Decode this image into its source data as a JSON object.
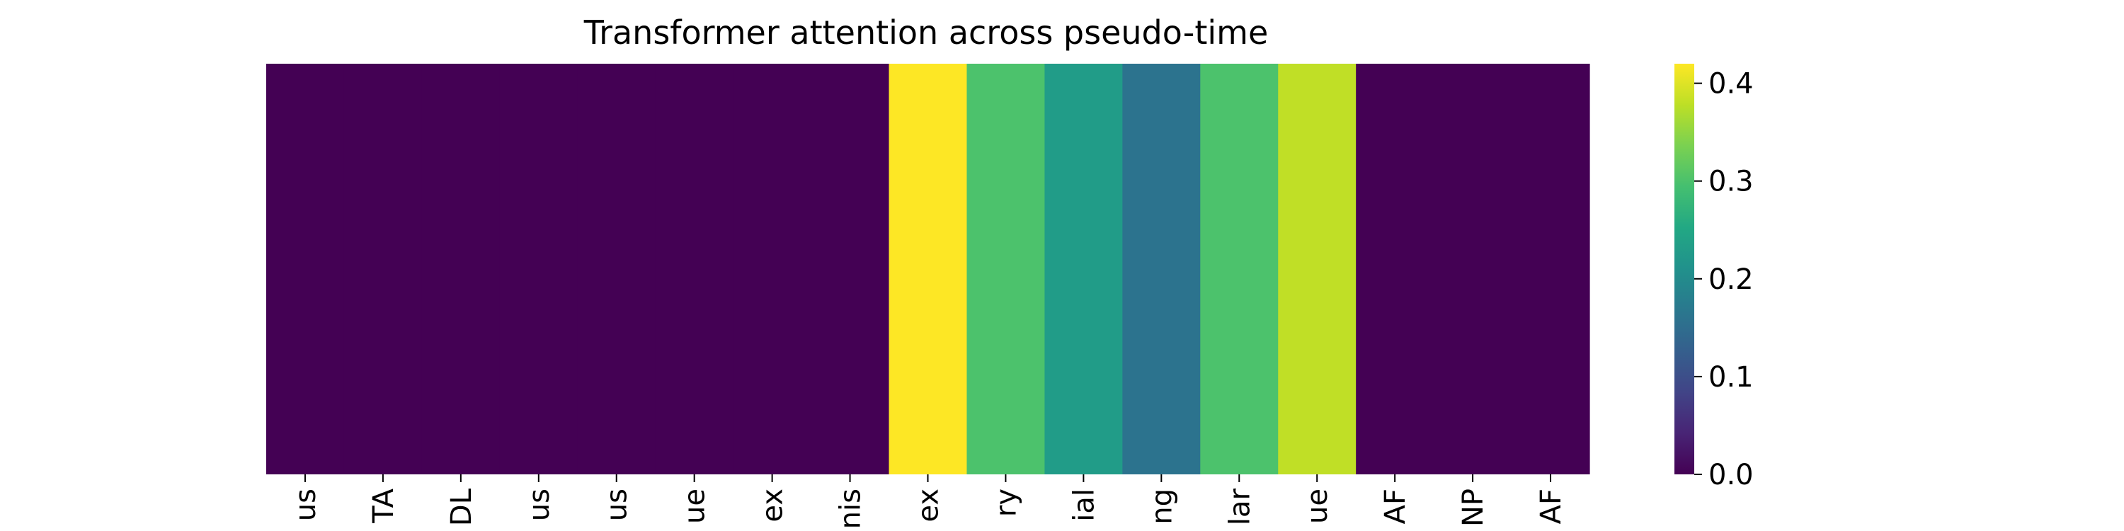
{
  "chart_data": {
    "type": "heatmap",
    "title": "Transformer attention across pseudo-time",
    "xlabel": "",
    "ylabel": "",
    "categories": [
      "us",
      "TA",
      "DL",
      "us",
      "us",
      "ue",
      "ex",
      "nis",
      "ex",
      "ry",
      "ial",
      "ng",
      "lar",
      "ue",
      "AF",
      "NP",
      "AF"
    ],
    "rows": 1,
    "values": [
      0.0,
      0.0,
      0.0,
      0.0,
      0.0,
      0.0,
      0.0,
      0.0,
      0.42,
      0.3,
      0.23,
      0.16,
      0.3,
      0.38,
      0.0,
      0.0,
      0.0
    ],
    "colormap": "viridis",
    "colorbar": {
      "range": [
        0.0,
        0.42
      ],
      "ticks": [
        0.0,
        0.1,
        0.2,
        0.3,
        0.4
      ],
      "tick_labels": [
        "0.0",
        "0.1",
        "0.2",
        "0.3",
        "0.4"
      ]
    },
    "grid": false,
    "legend": "colorbar-right"
  }
}
